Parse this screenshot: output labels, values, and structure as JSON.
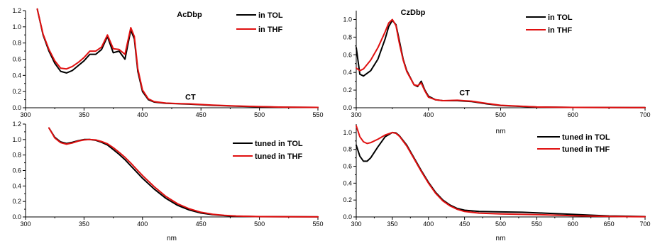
{
  "chart_data": [
    {
      "type": "line",
      "title": "AcDbp",
      "xlabel": "",
      "ylabel": "",
      "xlim": [
        300,
        550
      ],
      "ylim": [
        0,
        1.2
      ],
      "xticks": [
        "300",
        "350",
        "400",
        "450",
        "500",
        "550"
      ],
      "yticks": [
        "0.0",
        "0.2",
        "0.4",
        "0.6",
        "0.8",
        "1.0",
        "1.2"
      ],
      "annotations": [
        {
          "text": "CT",
          "x": 441,
          "y": 0.1
        }
      ],
      "legend_position": "top-right",
      "series": [
        {
          "name": "in TOL",
          "color": "#000000",
          "points": [
            [
              310,
              1.22
            ],
            [
              315,
              0.9
            ],
            [
              320,
              0.7
            ],
            [
              325,
              0.55
            ],
            [
              330,
              0.45
            ],
            [
              335,
              0.43
            ],
            [
              340,
              0.46
            ],
            [
              345,
              0.52
            ],
            [
              350,
              0.58
            ],
            [
              355,
              0.66
            ],
            [
              360,
              0.66
            ],
            [
              365,
              0.72
            ],
            [
              370,
              0.88
            ],
            [
              375,
              0.68
            ],
            [
              380,
              0.7
            ],
            [
              385,
              0.6
            ],
            [
              390,
              0.96
            ],
            [
              393,
              0.85
            ],
            [
              396,
              0.45
            ],
            [
              400,
              0.2
            ],
            [
              405,
              0.1
            ],
            [
              410,
              0.07
            ],
            [
              420,
              0.055
            ],
            [
              430,
              0.05
            ],
            [
              440,
              0.045
            ],
            [
              450,
              0.038
            ],
            [
              460,
              0.03
            ],
            [
              480,
              0.02
            ],
            [
              500,
              0.012
            ],
            [
              520,
              0.007
            ],
            [
              550,
              0.004
            ]
          ]
        },
        {
          "name": "in THF",
          "color": "#e01010",
          "points": [
            [
              310,
              1.22
            ],
            [
              315,
              0.91
            ],
            [
              320,
              0.72
            ],
            [
              325,
              0.58
            ],
            [
              330,
              0.49
            ],
            [
              335,
              0.48
            ],
            [
              340,
              0.51
            ],
            [
              345,
              0.56
            ],
            [
              350,
              0.62
            ],
            [
              355,
              0.7
            ],
            [
              360,
              0.7
            ],
            [
              365,
              0.75
            ],
            [
              370,
              0.9
            ],
            [
              375,
              0.73
            ],
            [
              380,
              0.72
            ],
            [
              385,
              0.66
            ],
            [
              390,
              0.99
            ],
            [
              393,
              0.88
            ],
            [
              396,
              0.48
            ],
            [
              400,
              0.22
            ],
            [
              405,
              0.11
            ],
            [
              410,
              0.075
            ],
            [
              420,
              0.058
            ],
            [
              430,
              0.052
            ],
            [
              440,
              0.048
            ],
            [
              450,
              0.04
            ],
            [
              460,
              0.032
            ],
            [
              480,
              0.022
            ],
            [
              500,
              0.014
            ],
            [
              520,
              0.008
            ],
            [
              550,
              0.004
            ]
          ]
        }
      ]
    },
    {
      "type": "line",
      "title": "CzDbp",
      "xlabel": "nm",
      "ylabel": "",
      "xlim": [
        300,
        700
      ],
      "ylim": [
        0,
        1.1
      ],
      "xticks": [
        "300",
        "400",
        "500",
        "600",
        "700"
      ],
      "yticks": [
        "0.0",
        "0.2",
        "0.4",
        "0.6",
        "0.8",
        "1.0"
      ],
      "annotations": [
        {
          "text": "CT",
          "x": 450,
          "y": 0.14
        }
      ],
      "legend_position": "top-right",
      "series": [
        {
          "name": "in TOL",
          "color": "#000000",
          "points": [
            [
              300,
              0.68
            ],
            [
              305,
              0.38
            ],
            [
              310,
              0.36
            ],
            [
              320,
              0.42
            ],
            [
              330,
              0.55
            ],
            [
              340,
              0.78
            ],
            [
              345,
              0.92
            ],
            [
              350,
              0.99
            ],
            [
              355,
              0.94
            ],
            [
              360,
              0.75
            ],
            [
              365,
              0.55
            ],
            [
              370,
              0.42
            ],
            [
              380,
              0.26
            ],
            [
              385,
              0.24
            ],
            [
              390,
              0.3
            ],
            [
              395,
              0.2
            ],
            [
              400,
              0.13
            ],
            [
              410,
              0.09
            ],
            [
              420,
              0.08
            ],
            [
              440,
              0.08
            ],
            [
              460,
              0.07
            ],
            [
              480,
              0.045
            ],
            [
              500,
              0.025
            ],
            [
              550,
              0.008
            ],
            [
              600,
              0.004
            ],
            [
              700,
              0.002
            ]
          ]
        },
        {
          "name": "in THF",
          "color": "#e01010",
          "points": [
            [
              300,
              0.45
            ],
            [
              305,
              0.42
            ],
            [
              310,
              0.44
            ],
            [
              320,
              0.54
            ],
            [
              330,
              0.68
            ],
            [
              340,
              0.86
            ],
            [
              345,
              0.96
            ],
            [
              350,
              1.0
            ],
            [
              355,
              0.93
            ],
            [
              360,
              0.72
            ],
            [
              365,
              0.54
            ],
            [
              370,
              0.41
            ],
            [
              380,
              0.26
            ],
            [
              385,
              0.25
            ],
            [
              390,
              0.28
            ],
            [
              395,
              0.19
            ],
            [
              400,
              0.12
            ],
            [
              410,
              0.09
            ],
            [
              420,
              0.08
            ],
            [
              440,
              0.085
            ],
            [
              460,
              0.075
            ],
            [
              480,
              0.05
            ],
            [
              500,
              0.028
            ],
            [
              550,
              0.009
            ],
            [
              600,
              0.004
            ],
            [
              700,
              0.002
            ]
          ]
        }
      ]
    },
    {
      "type": "line",
      "title": "",
      "xlabel": "nm",
      "ylabel": "",
      "xlim": [
        300,
        550
      ],
      "ylim": [
        0,
        1.2
      ],
      "xticks": [
        "300",
        "350",
        "400",
        "450",
        "500",
        "550"
      ],
      "yticks": [
        "0.0",
        "0.2",
        "0.4",
        "0.6",
        "0.8",
        "1.0",
        "1.2"
      ],
      "annotations": [],
      "legend_position": "top-right",
      "series": [
        {
          "name": "tuned in TOL",
          "color": "#000000",
          "points": [
            [
              320,
              1.15
            ],
            [
              325,
              1.03
            ],
            [
              330,
              0.97
            ],
            [
              335,
              0.95
            ],
            [
              340,
              0.965
            ],
            [
              345,
              0.985
            ],
            [
              350,
              1.0
            ],
            [
              355,
              1.0
            ],
            [
              360,
              0.99
            ],
            [
              365,
              0.965
            ],
            [
              370,
              0.93
            ],
            [
              375,
              0.87
            ],
            [
              380,
              0.81
            ],
            [
              385,
              0.74
            ],
            [
              390,
              0.66
            ],
            [
              395,
              0.58
            ],
            [
              400,
              0.5
            ],
            [
              410,
              0.36
            ],
            [
              420,
              0.24
            ],
            [
              430,
              0.15
            ],
            [
              440,
              0.09
            ],
            [
              450,
              0.05
            ],
            [
              460,
              0.03
            ],
            [
              470,
              0.017
            ],
            [
              480,
              0.01
            ],
            [
              500,
              0.004
            ],
            [
              550,
              0.001
            ]
          ]
        },
        {
          "name": "tuned in THF",
          "color": "#e01010",
          "points": [
            [
              320,
              1.15
            ],
            [
              325,
              1.02
            ],
            [
              330,
              0.96
            ],
            [
              335,
              0.94
            ],
            [
              340,
              0.955
            ],
            [
              345,
              0.98
            ],
            [
              350,
              0.995
            ],
            [
              355,
              1.0
            ],
            [
              360,
              0.995
            ],
            [
              365,
              0.975
            ],
            [
              370,
              0.945
            ],
            [
              375,
              0.895
            ],
            [
              380,
              0.835
            ],
            [
              385,
              0.77
            ],
            [
              390,
              0.695
            ],
            [
              395,
              0.615
            ],
            [
              400,
              0.535
            ],
            [
              410,
              0.39
            ],
            [
              420,
              0.265
            ],
            [
              430,
              0.17
            ],
            [
              440,
              0.105
            ],
            [
              450,
              0.06
            ],
            [
              460,
              0.035
            ],
            [
              470,
              0.02
            ],
            [
              480,
              0.012
            ],
            [
              500,
              0.005
            ],
            [
              550,
              0.001
            ]
          ]
        }
      ]
    },
    {
      "type": "line",
      "title": "",
      "xlabel": "nm",
      "ylabel": "",
      "xlim": [
        300,
        700
      ],
      "ylim": [
        0,
        1.1
      ],
      "xticks": [
        "300",
        "350",
        "400",
        "450",
        "500",
        "550",
        "600",
        "650",
        "700"
      ],
      "yticks": [
        "0.0",
        "0.2",
        "0.4",
        "0.6",
        "0.8",
        "1.0"
      ],
      "annotations": [],
      "legend_position": "right",
      "series": [
        {
          "name": "tuned in TOL",
          "color": "#000000",
          "points": [
            [
              300,
              0.85
            ],
            [
              305,
              0.72
            ],
            [
              310,
              0.66
            ],
            [
              315,
              0.66
            ],
            [
              320,
              0.7
            ],
            [
              330,
              0.83
            ],
            [
              340,
              0.95
            ],
            [
              350,
              1.0
            ],
            [
              355,
              0.995
            ],
            [
              360,
              0.96
            ],
            [
              370,
              0.85
            ],
            [
              380,
              0.7
            ],
            [
              390,
              0.55
            ],
            [
              400,
              0.41
            ],
            [
              410,
              0.29
            ],
            [
              420,
              0.2
            ],
            [
              430,
              0.14
            ],
            [
              440,
              0.1
            ],
            [
              450,
              0.08
            ],
            [
              470,
              0.065
            ],
            [
              500,
              0.06
            ],
            [
              530,
              0.055
            ],
            [
              560,
              0.045
            ],
            [
              600,
              0.03
            ],
            [
              650,
              0.012
            ],
            [
              700,
              0.004
            ]
          ]
        },
        {
          "name": "tuned in THF",
          "color": "#e01010",
          "points": [
            [
              300,
              1.08
            ],
            [
              305,
              0.95
            ],
            [
              310,
              0.89
            ],
            [
              315,
              0.87
            ],
            [
              320,
              0.88
            ],
            [
              330,
              0.92
            ],
            [
              340,
              0.97
            ],
            [
              350,
              1.0
            ],
            [
              355,
              0.99
            ],
            [
              360,
              0.955
            ],
            [
              370,
              0.84
            ],
            [
              380,
              0.69
            ],
            [
              390,
              0.54
            ],
            [
              400,
              0.4
            ],
            [
              410,
              0.28
            ],
            [
              420,
              0.19
            ],
            [
              430,
              0.13
            ],
            [
              440,
              0.09
            ],
            [
              450,
              0.065
            ],
            [
              470,
              0.045
            ],
            [
              500,
              0.035
            ],
            [
              530,
              0.03
            ],
            [
              560,
              0.025
            ],
            [
              600,
              0.015
            ],
            [
              650,
              0.006
            ],
            [
              700,
              0.002
            ]
          ]
        }
      ]
    }
  ]
}
